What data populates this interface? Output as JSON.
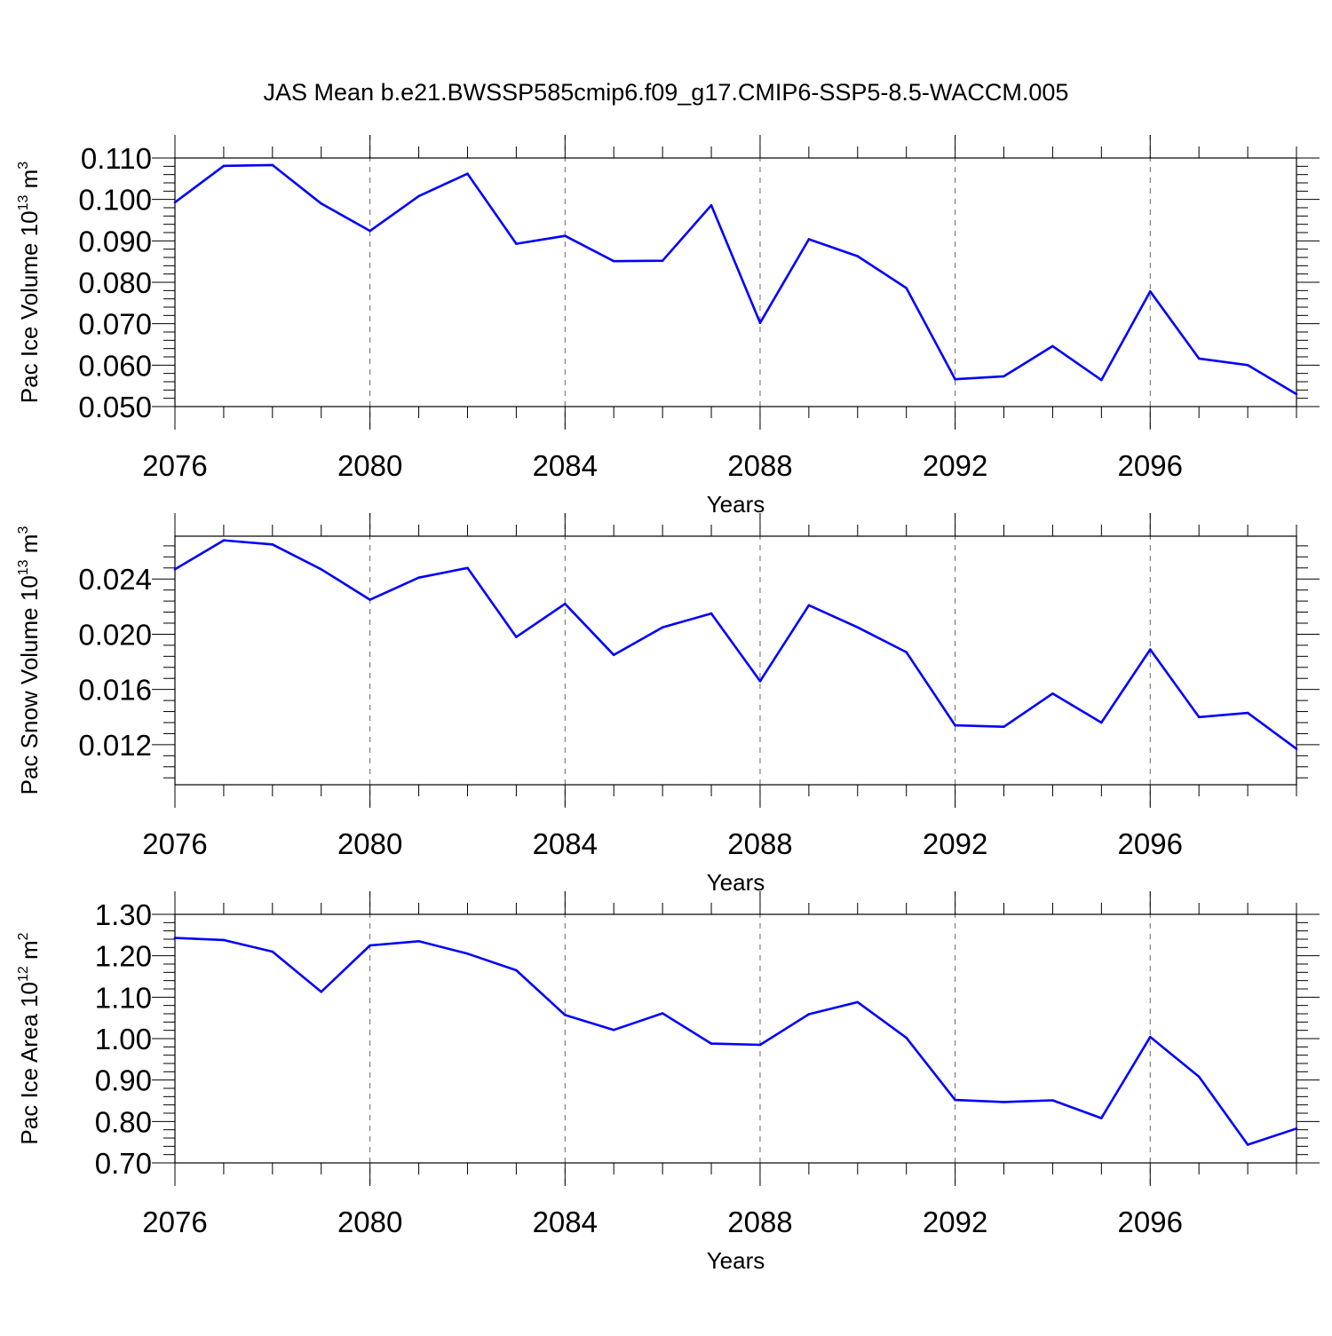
{
  "title": "JAS Mean b.e21.BWSSP585cmip6.f09_g17.CMIP6-SSP5-8.5-WACCM.005",
  "line_color": "#0000ff",
  "chart_data": [
    {
      "type": "line",
      "xlabel": "Years",
      "ylabel_parts": [
        "Pac Ice Volume 10",
        "13",
        " m",
        "3"
      ],
      "xlim": [
        2076,
        2099
      ],
      "ylim": [
        0.05,
        0.11
      ],
      "x_ticks": [
        "2076",
        "2080",
        "2084",
        "2088",
        "2092",
        "2096"
      ],
      "y_ticks": [
        "0.050",
        "0.060",
        "0.070",
        "0.080",
        "0.090",
        "0.100",
        "0.110"
      ],
      "x": [
        2076,
        2077,
        2078,
        2079,
        2080,
        2081,
        2082,
        2083,
        2084,
        2085,
        2086,
        2087,
        2088,
        2089,
        2090,
        2091,
        2092,
        2093,
        2094,
        2095,
        2096,
        2097,
        2098,
        2099
      ],
      "y": [
        0.0993,
        0.1081,
        0.1083,
        0.099,
        0.0924,
        0.1008,
        0.1062,
        0.0893,
        0.0912,
        0.0851,
        0.0852,
        0.0986,
        0.0702,
        0.0904,
        0.0863,
        0.0786,
        0.0566,
        0.0573,
        0.0646,
        0.0564,
        0.0778,
        0.0616,
        0.06,
        0.053
      ]
    },
    {
      "type": "line",
      "xlabel": "Years",
      "ylabel_parts": [
        "Pac Snow Volume 10",
        "13",
        " m",
        "3"
      ],
      "xlim": [
        2076,
        2099
      ],
      "ylim": [
        0.0091,
        0.0271
      ],
      "x_ticks": [
        "2076",
        "2080",
        "2084",
        "2088",
        "2092",
        "2096"
      ],
      "y_ticks": [
        "0.012",
        "0.016",
        "0.020",
        "0.024"
      ],
      "x": [
        2076,
        2077,
        2078,
        2079,
        2080,
        2081,
        2082,
        2083,
        2084,
        2085,
        2086,
        2087,
        2088,
        2089,
        2090,
        2091,
        2092,
        2093,
        2094,
        2095,
        2096,
        2097,
        2098,
        2099
      ],
      "y": [
        0.0247,
        0.0268,
        0.0265,
        0.0247,
        0.0225,
        0.0241,
        0.0248,
        0.0198,
        0.0222,
        0.0185,
        0.0205,
        0.0215,
        0.0166,
        0.0221,
        0.0205,
        0.0187,
        0.0134,
        0.0133,
        0.0157,
        0.0136,
        0.0189,
        0.014,
        0.0143,
        0.0117
      ]
    },
    {
      "type": "line",
      "xlabel": "Years",
      "ylabel_parts": [
        "Pac Ice Area 10",
        "12",
        " m",
        "2"
      ],
      "xlim": [
        2076,
        2099
      ],
      "ylim": [
        0.7,
        1.3
      ],
      "x_ticks": [
        "2076",
        "2080",
        "2084",
        "2088",
        "2092",
        "2096"
      ],
      "y_ticks": [
        "0.70",
        "0.80",
        "0.90",
        "1.00",
        "1.10",
        "1.20",
        "1.30"
      ],
      "x": [
        2076,
        2077,
        2078,
        2079,
        2080,
        2081,
        2082,
        2083,
        2084,
        2085,
        2086,
        2087,
        2088,
        2089,
        2090,
        2091,
        2092,
        2093,
        2094,
        2095,
        2096,
        2097,
        2098,
        2099
      ],
      "y": [
        1.243,
        1.238,
        1.21,
        1.113,
        1.225,
        1.235,
        1.205,
        1.165,
        1.057,
        1.021,
        1.061,
        0.988,
        0.985,
        1.059,
        1.088,
        1.002,
        0.852,
        0.847,
        0.851,
        0.808,
        1.004,
        0.908,
        0.744,
        0.783
      ]
    }
  ]
}
